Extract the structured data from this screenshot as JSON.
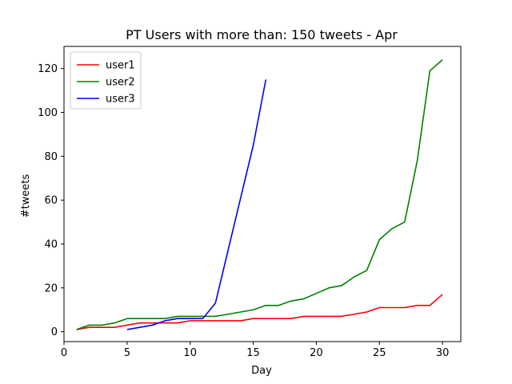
{
  "chart_data": {
    "type": "line",
    "title": "PT Users with more than: 150 tweets - Apr",
    "xlabel": "Day",
    "ylabel": "#tweets",
    "xlim": [
      0,
      31.45
    ],
    "ylim": [
      -4.5,
      130.1
    ],
    "x_ticks": [
      0,
      5,
      10,
      15,
      20,
      25,
      30
    ],
    "y_ticks": [
      0,
      20,
      40,
      60,
      80,
      100,
      120
    ],
    "grid": false,
    "legend_position": "upper left",
    "series": [
      {
        "name": "user1",
        "color": "#ff0000",
        "x": [
          1,
          2,
          3,
          4,
          5,
          6,
          7,
          8,
          9,
          10,
          11,
          12,
          13,
          14,
          15,
          16,
          17,
          18,
          19,
          20,
          21,
          22,
          23,
          24,
          25,
          26,
          27,
          28,
          29,
          30
        ],
        "y": [
          1,
          2,
          2,
          2,
          3,
          4,
          4,
          4,
          4,
          5,
          5,
          5,
          5,
          5,
          6,
          6,
          6,
          6,
          7,
          7,
          7,
          7,
          8,
          9,
          11,
          11,
          11,
          12,
          12,
          17
        ]
      },
      {
        "name": "user2",
        "color": "#008000",
        "x": [
          1,
          2,
          3,
          4,
          5,
          6,
          7,
          8,
          9,
          10,
          11,
          12,
          13,
          14,
          15,
          16,
          17,
          18,
          19,
          20,
          21,
          22,
          23,
          24,
          25,
          26,
          27,
          28,
          29,
          30
        ],
        "y": [
          1,
          3,
          3,
          4,
          6,
          6,
          6,
          6,
          7,
          7,
          7,
          7,
          8,
          9,
          10,
          12,
          12,
          14,
          15,
          17.5,
          20,
          21,
          25,
          28,
          42,
          47,
          50,
          78,
          119,
          124
        ]
      },
      {
        "name": "user3",
        "color": "#0000ff",
        "x": [
          5,
          6,
          7,
          8,
          9,
          10,
          11,
          12,
          13,
          14,
          15,
          16
        ],
        "y": [
          1,
          2,
          3,
          5,
          6,
          6,
          6,
          13,
          37,
          61,
          85,
          115
        ]
      }
    ]
  }
}
